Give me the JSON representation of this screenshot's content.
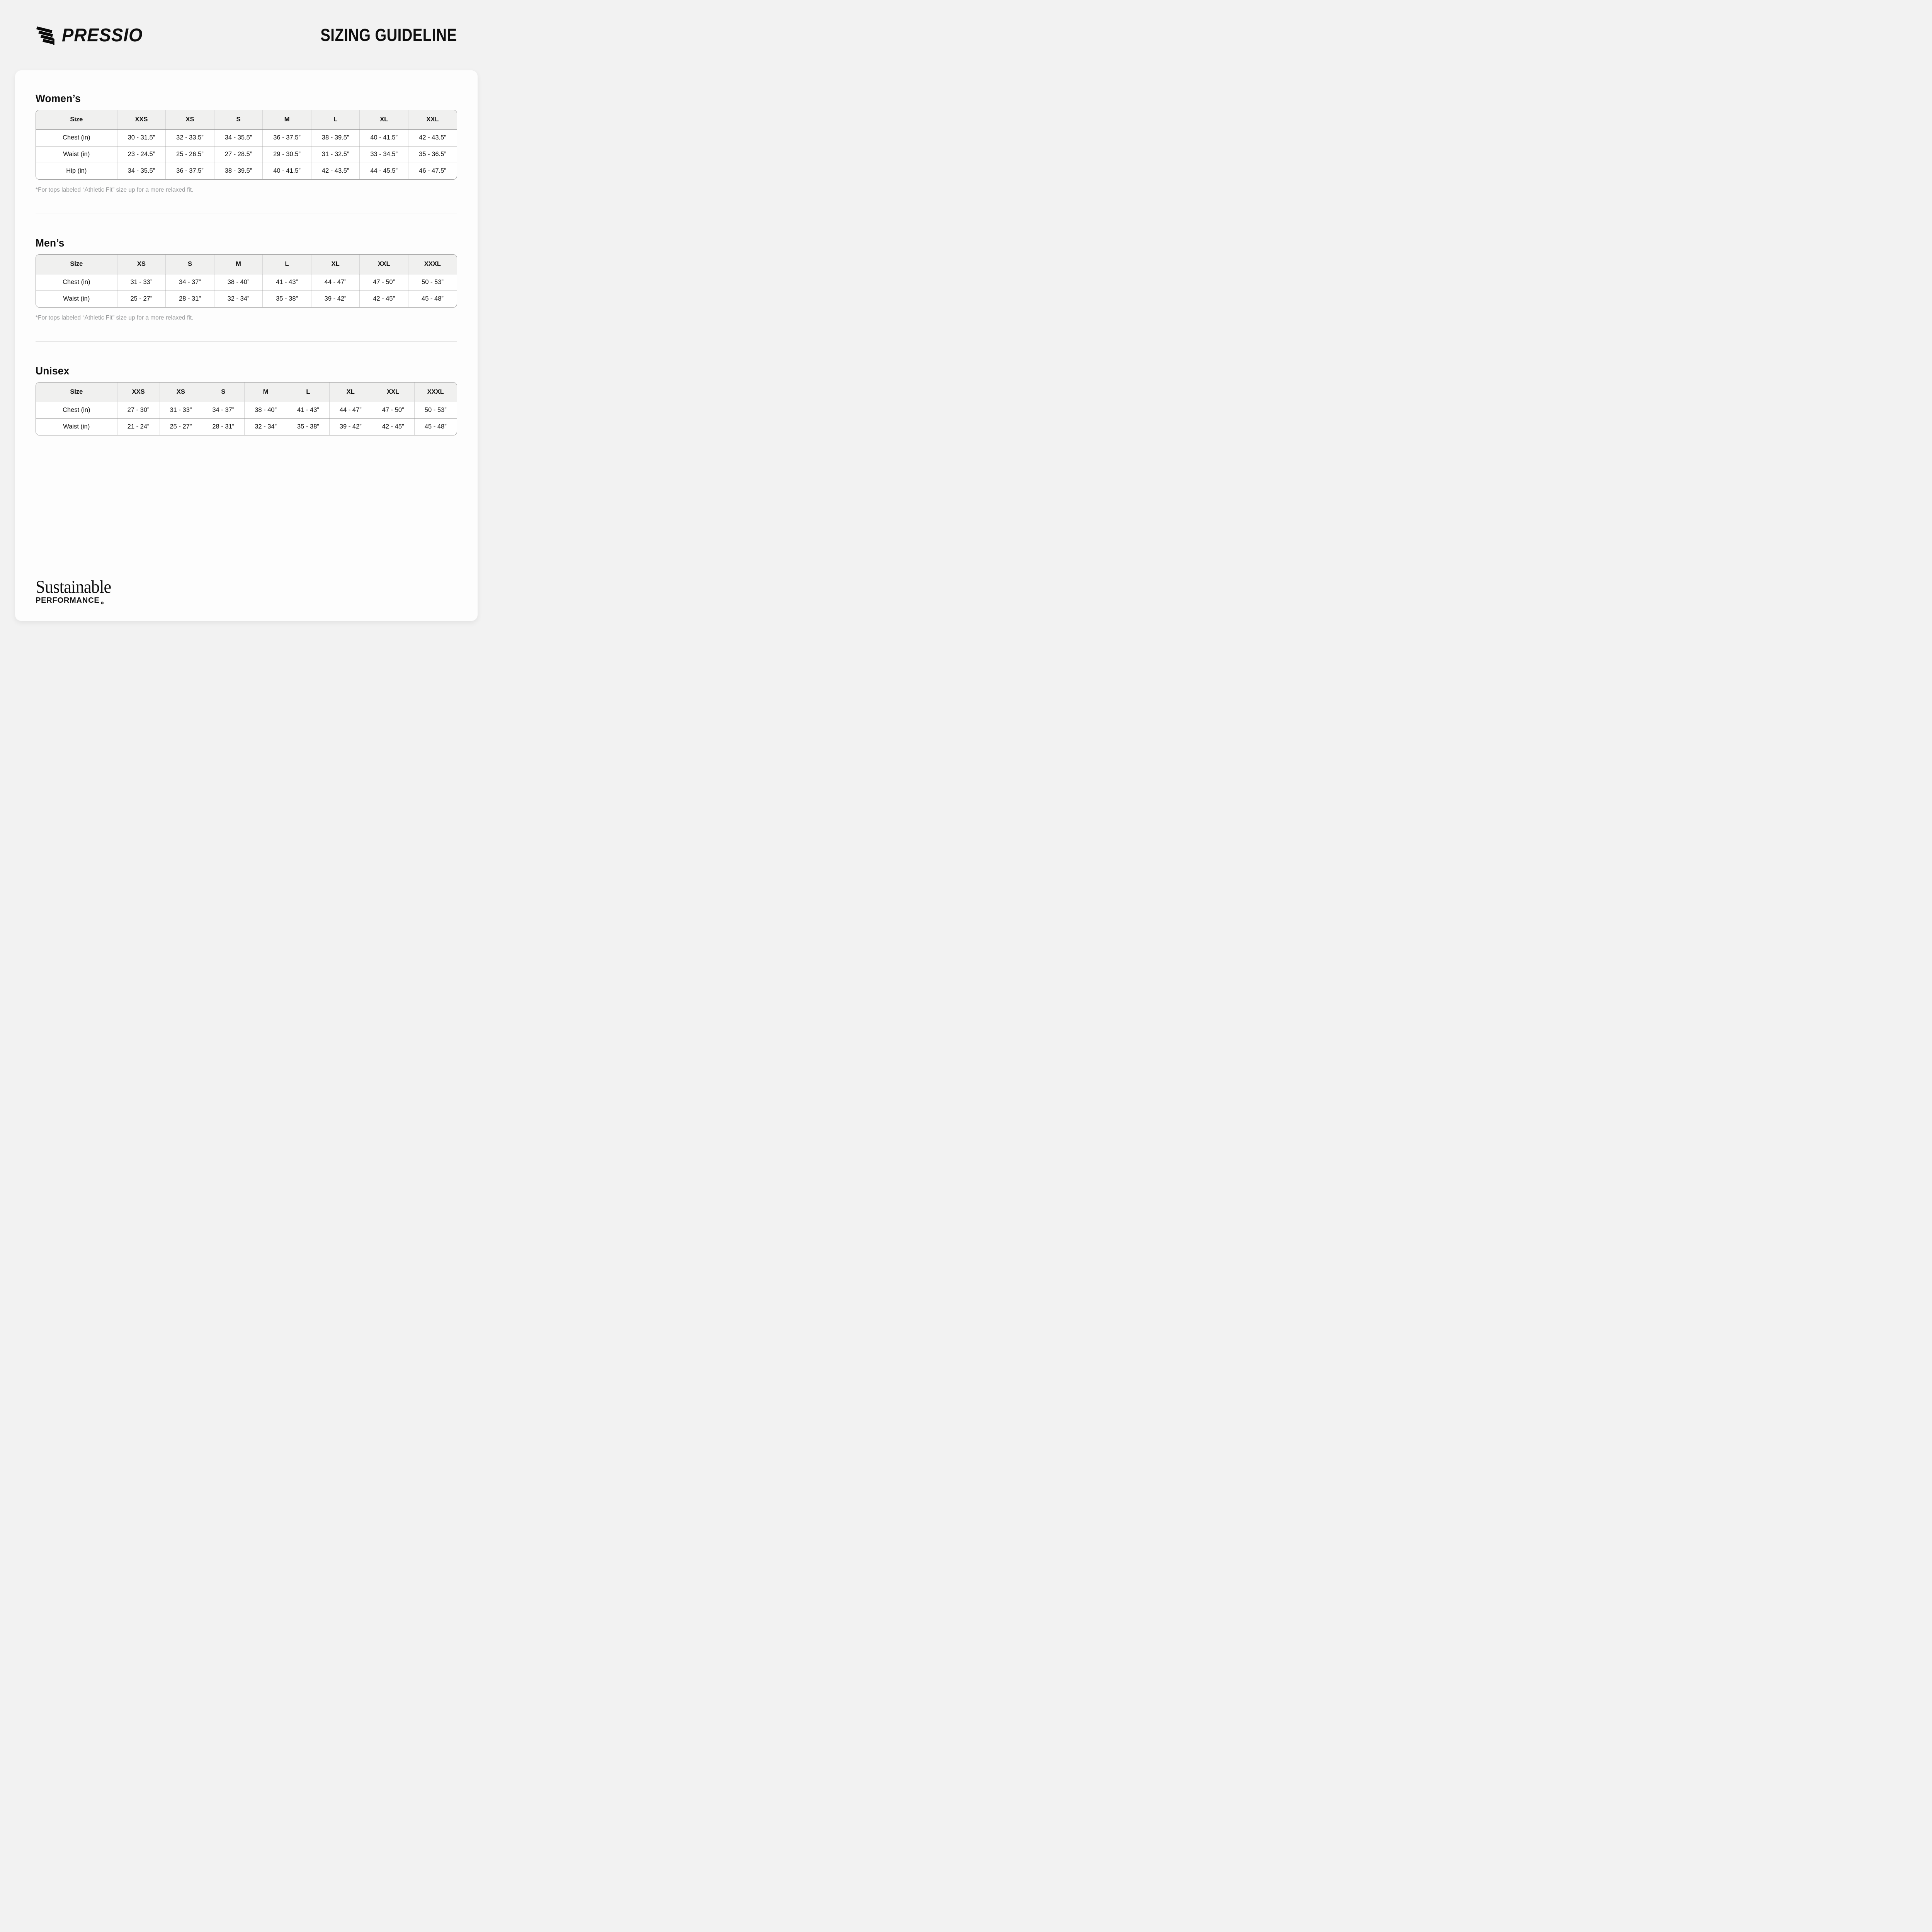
{
  "colors": {
    "page_bg": "#f2f2f2",
    "card_bg": "#fdfdfd",
    "header_row_bg": "#f0f0ef",
    "table_border": "#a3a3a3",
    "text": "#0f0f0f",
    "muted_footnote": "#97999b"
  },
  "icons": {
    "brand_mark": "pressio-wing-icon",
    "footer_mark": "circle-mark-icon"
  },
  "header": {
    "brand": "PRESSIO",
    "title": "SIZING GUIDELINE"
  },
  "sections": [
    {
      "heading": "Women’s",
      "table": {
        "columns": [
          "Size",
          "XXS",
          "XS",
          "S",
          "M",
          "L",
          "XL",
          "XXL"
        ],
        "rows": [
          {
            "label": "Chest (in)",
            "values": [
              "30 - 31.5”",
              "32 - 33.5”",
              "34 - 35.5”",
              "36 - 37.5”",
              "38 - 39.5”",
              "40 - 41.5”",
              "42 - 43.5”"
            ]
          },
          {
            "label": "Waist (in)",
            "values": [
              "23 - 24.5”",
              "25 - 26.5”",
              "27 - 28.5”",
              "29 - 30.5”",
              "31 - 32.5”",
              "33 - 34.5”",
              "35 - 36.5”"
            ]
          },
          {
            "label": "Hip (in)",
            "values": [
              "34 - 35.5”",
              "36 - 37.5”",
              "38 - 39.5”",
              "40 - 41.5”",
              "42 - 43.5”",
              "44 - 45.5”",
              "46 - 47.5”"
            ]
          }
        ]
      },
      "footnote": "*For tops labeled “Athletic Fit” size up for a more relaxed fit."
    },
    {
      "heading": "Men’s",
      "table": {
        "columns": [
          "Size",
          "XS",
          "S",
          "M",
          "L",
          "XL",
          "XXL",
          "XXXL"
        ],
        "rows": [
          {
            "label": "Chest (in)",
            "values": [
              "31 - 33”",
              "34 - 37”",
              "38 - 40”",
              "41 - 43”",
              "44 - 47”",
              "47 - 50”",
              "50 - 53”"
            ]
          },
          {
            "label": "Waist (in)",
            "values": [
              "25 - 27”",
              "28 - 31”",
              "32 - 34”",
              "35 - 38”",
              "39 - 42”",
              "42 - 45”",
              "45 - 48”"
            ]
          }
        ]
      },
      "footnote": "*For tops labeled “Athletic Fit” size up for a more relaxed fit."
    },
    {
      "heading": "Unisex",
      "table": {
        "columns": [
          "Size",
          "XXS",
          "XS",
          "S",
          "M",
          "L",
          "XL",
          "XXL",
          "XXXL"
        ],
        "rows": [
          {
            "label": "Chest (in)",
            "values": [
              "27 - 30”",
              "31 - 33”",
              "34 - 37”",
              "38 - 40”",
              "41 - 43”",
              "44 - 47”",
              "47 - 50”",
              "50 - 53”"
            ]
          },
          {
            "label": "Waist (in)",
            "values": [
              "21 - 24”",
              "25 - 27”",
              "28 - 31”",
              "32 - 34”",
              "35 - 38”",
              "39 - 42”",
              "42 - 45”",
              "45 - 48”"
            ]
          }
        ]
      },
      "footnote": ""
    }
  ],
  "footer": {
    "line1": "Sustainable",
    "line2": "PERFORMANCE"
  }
}
